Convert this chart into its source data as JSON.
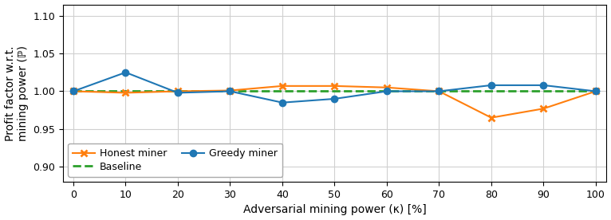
{
  "x": [
    0,
    10,
    20,
    30,
    40,
    50,
    60,
    70,
    80,
    90,
    100
  ],
  "honest_miner": [
    1.0,
    0.998,
    1.0,
    1.001,
    1.007,
    1.007,
    1.005,
    1.0,
    0.965,
    0.977,
    1.0
  ],
  "greedy_miner": [
    1.0,
    1.025,
    0.998,
    1.0,
    0.985,
    0.99,
    1.0,
    1.0,
    1.008,
    1.008,
    1.0
  ],
  "baseline": [
    1.0,
    1.0,
    1.0,
    1.0,
    1.0,
    1.0,
    1.0,
    1.0,
    1.0,
    1.0,
    1.0
  ],
  "honest_color": "#ff7f0e",
  "greedy_color": "#1f77b4",
  "baseline_color": "#2ca02c",
  "xlabel": "Adversarial mining power (κ) [%]",
  "ylabel": "Profit factor w.r.t.\nmining power (ℙ)",
  "ylim": [
    0.88,
    1.115
  ],
  "yticks": [
    0.9,
    0.95,
    1.0,
    1.05,
    1.1
  ],
  "xticks": [
    0,
    10,
    20,
    30,
    40,
    50,
    60,
    70,
    80,
    90,
    100
  ],
  "legend_honest": "Honest miner",
  "legend_greedy": "Greedy miner",
  "legend_baseline": "Baseline",
  "figsize": [
    7.66,
    2.76
  ],
  "dpi": 100
}
